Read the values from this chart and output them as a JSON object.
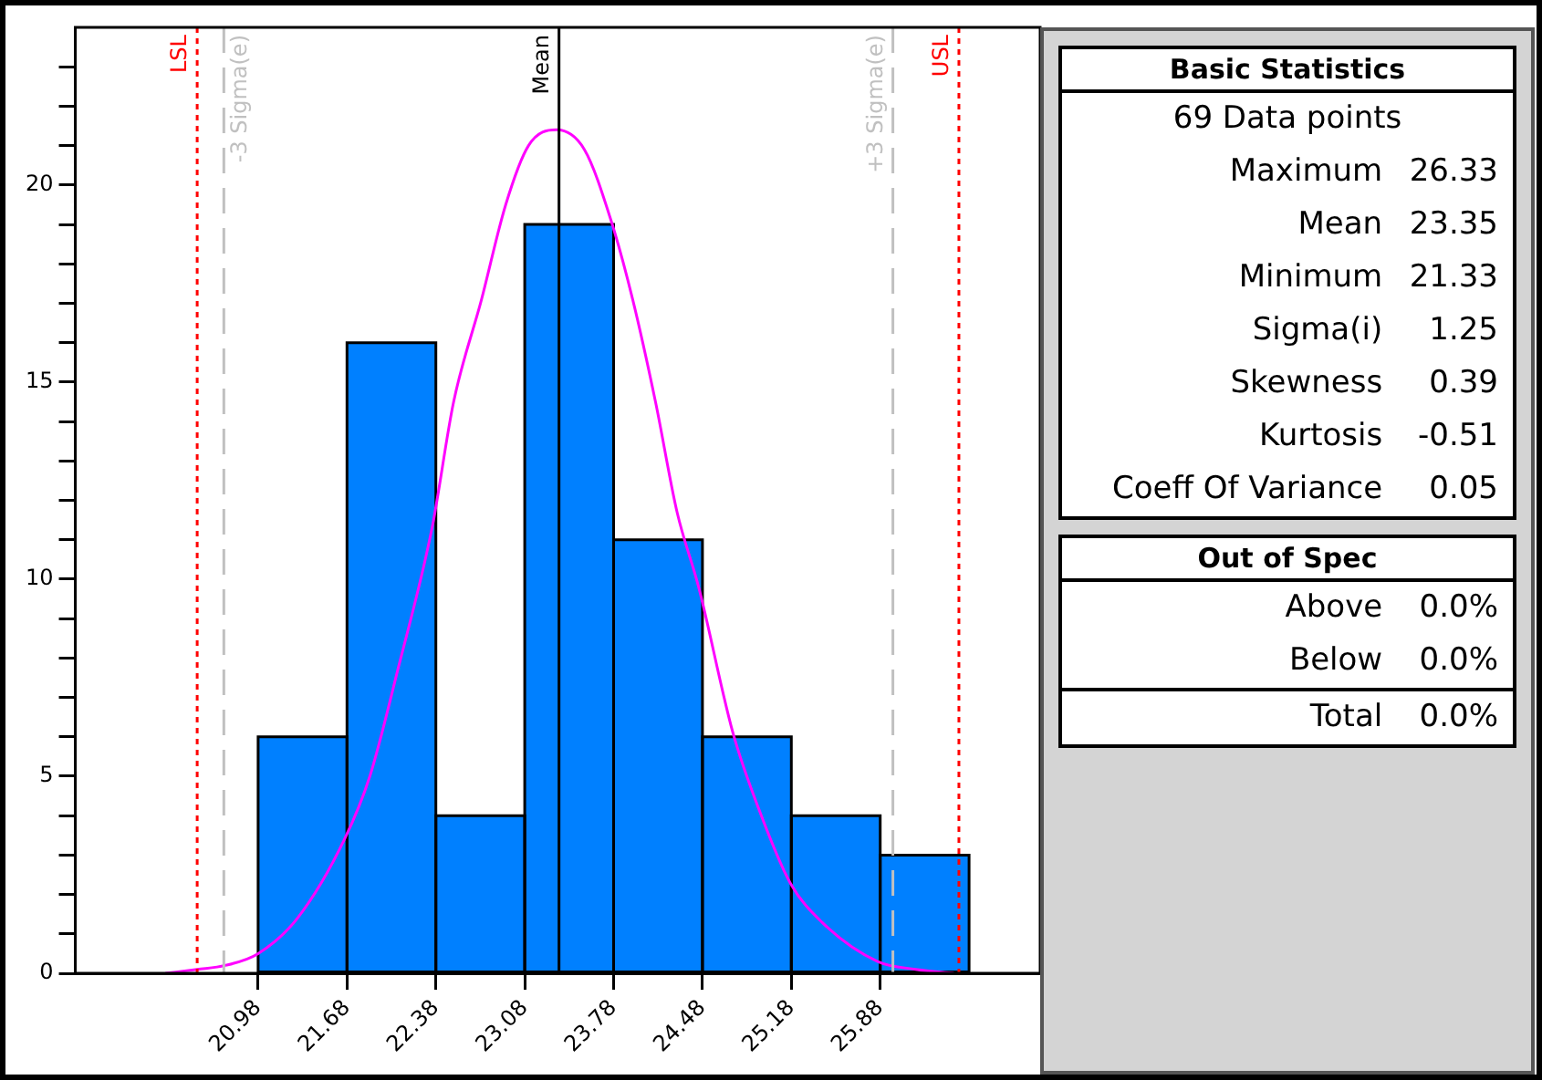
{
  "chart_data": [
    {
      "type": "histogram",
      "bins": [
        20.98,
        21.68,
        22.38,
        23.08,
        23.78,
        24.48,
        25.18,
        25.88,
        26.58
      ],
      "values": [
        6,
        16,
        4,
        19,
        11,
        6,
        4,
        3
      ],
      "color": "#0080ff",
      "xlim": [
        19.54,
        27.14
      ],
      "xticks": [
        20.98,
        21.68,
        22.38,
        23.08,
        23.78,
        24.48,
        25.18,
        25.88
      ],
      "ylim": [
        0,
        24
      ],
      "yticks": [
        0,
        {
          "value": 1,
          "label": null
        },
        {
          "value": 2,
          "label": null
        },
        {
          "value": 3,
          "label": null
        },
        {
          "value": 4,
          "label": null
        },
        5,
        {
          "value": 6,
          "label": null
        },
        {
          "value": 7,
          "label": null
        },
        {
          "value": 8,
          "label": null
        },
        {
          "value": 9,
          "label": null
        },
        10,
        {
          "value": 11,
          "label": null
        },
        {
          "value": 12,
          "label": null
        },
        {
          "value": 13,
          "label": null
        },
        {
          "value": 14,
          "label": null
        },
        15,
        {
          "value": 16,
          "label": null
        },
        {
          "value": 17,
          "label": null
        },
        {
          "value": 18,
          "label": null
        },
        {
          "value": 19,
          "label": null
        },
        20,
        {
          "value": 21,
          "label": null
        },
        {
          "value": 22,
          "label": null
        },
        {
          "value": 23,
          "label": null
        }
      ],
      "series": [
        {
          "type": "line",
          "color": "#ff00ff",
          "x": [
            20.25,
            20.5,
            20.72,
            20.98,
            21.29,
            21.66,
            21.86,
            22.08,
            22.35,
            22.52,
            22.74,
            22.93,
            23.11,
            23.33,
            23.55,
            23.76,
            23.93,
            24.11,
            24.28,
            24.45,
            24.72,
            24.92,
            25.17,
            25.42,
            25.86,
            26.16,
            26.46
          ],
          "values": [
            0,
            0.1,
            0.2,
            0.5,
            1.4,
            3.4,
            5,
            7.7,
            11.3,
            14.5,
            17.1,
            19.5,
            21,
            21.4,
            20.9,
            19.1,
            17.1,
            14.5,
            11.7,
            9.8,
            6.1,
            4.2,
            2.3,
            1.3,
            0.3,
            0.1,
            0
          ]
        }
      ],
      "ref_lines": [
        {
          "axis": "x",
          "value": 20.5,
          "label": "LSL",
          "color": "#ff0000",
          "line_style": "dotted"
        },
        {
          "axis": "x",
          "value": 20.71,
          "label": "-3 Sigma(e)",
          "color": "#c0c0c0",
          "line_style": "dashed"
        },
        {
          "axis": "x",
          "value": 23.35,
          "label": "Mean",
          "color": "#000000",
          "line_style": "solid"
        },
        {
          "axis": "x",
          "value": 25.98,
          "label": "+3 Sigma(e)",
          "color": "#c0c0c0",
          "line_style": "dashed"
        },
        {
          "axis": "x",
          "value": 26.5,
          "label": "USL",
          "color": "#ff0000",
          "line_style": "dotted"
        }
      ],
      "grid": false,
      "marker": "none"
    },
    {
      "type": "other",
      "title": "Basic Statistics",
      "annotations": [
        "69 Data points",
        "Maximum 26.33",
        "Mean 23.35",
        "Minimum 21.33",
        "Sigma(i) 1.25",
        "Skewness 0.39",
        "Kurtosis -0.51",
        "Coeff Of Variance 0.05"
      ]
    },
    {
      "type": "other",
      "title": "Out of Spec",
      "annotations": [
        "Above 0.0%",
        "Below 0.0%",
        "Total 0.0%"
      ]
    }
  ]
}
